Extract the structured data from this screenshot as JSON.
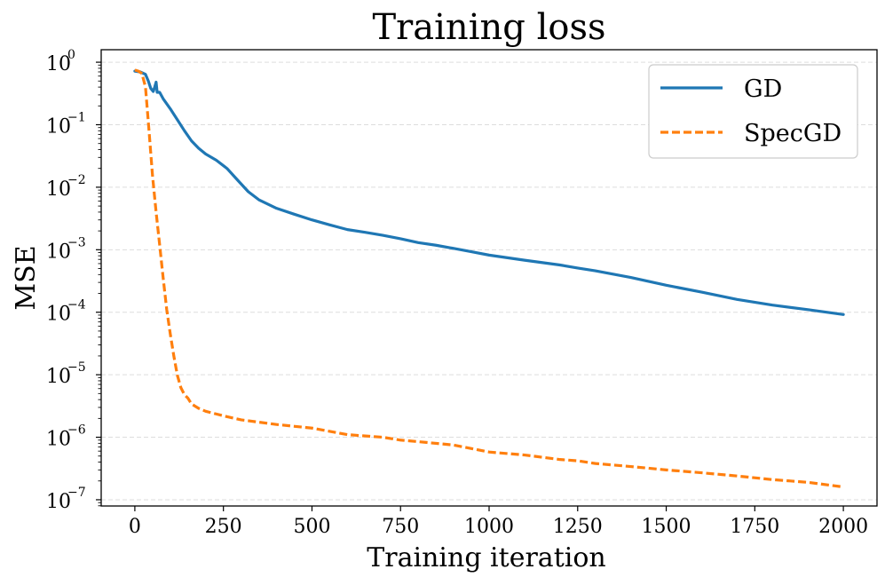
{
  "chart_data": {
    "type": "line",
    "title": "Training loss",
    "xlabel": "Training iteration",
    "ylabel": "MSE",
    "yscale": "log",
    "xlim": [
      -95,
      2095
    ],
    "ylim_exp": [
      -7.1,
      0.2
    ],
    "x_ticks": [
      0,
      250,
      500,
      750,
      1000,
      1250,
      1500,
      1750,
      2000
    ],
    "x_tick_labels": [
      "0",
      "250",
      "500",
      "750",
      "1000",
      "1250",
      "1500",
      "1750",
      "2000"
    ],
    "y_ticks_exp": [
      0,
      -1,
      -2,
      -3,
      -4,
      -5,
      -6,
      -7
    ],
    "y_tick_base": "10",
    "y_tick_exponents": [
      "0",
      "−1",
      "−2",
      "−3",
      "−4",
      "−5",
      "−6",
      "−7"
    ],
    "grid": "y-dashed",
    "legend_position": "top-right",
    "series": [
      {
        "name": "GD",
        "color": "#1f77b4",
        "style": "solid",
        "points": [
          [
            0,
            0.72
          ],
          [
            15,
            0.7
          ],
          [
            30,
            0.64
          ],
          [
            38,
            0.5
          ],
          [
            45,
            0.38
          ],
          [
            52,
            0.34
          ],
          [
            56,
            0.4
          ],
          [
            60,
            0.48
          ],
          [
            63,
            0.33
          ],
          [
            70,
            0.33
          ],
          [
            80,
            0.26
          ],
          [
            100,
            0.18
          ],
          [
            120,
            0.12
          ],
          [
            140,
            0.08
          ],
          [
            160,
            0.055
          ],
          [
            180,
            0.042
          ],
          [
            200,
            0.034
          ],
          [
            230,
            0.027
          ],
          [
            260,
            0.02
          ],
          [
            290,
            0.013
          ],
          [
            320,
            0.0085
          ],
          [
            350,
            0.0063
          ],
          [
            400,
            0.0046
          ],
          [
            450,
            0.0037
          ],
          [
            500,
            0.003
          ],
          [
            550,
            0.0025
          ],
          [
            600,
            0.0021
          ],
          [
            650,
            0.0019
          ],
          [
            700,
            0.0017
          ],
          [
            750,
            0.0015
          ],
          [
            800,
            0.0013
          ],
          [
            850,
            0.00118
          ],
          [
            900,
            0.00105
          ],
          [
            950,
            0.00093
          ],
          [
            1000,
            0.00082
          ],
          [
            1100,
            0.00068
          ],
          [
            1200,
            0.00057
          ],
          [
            1250,
            0.00051
          ],
          [
            1300,
            0.00046
          ],
          [
            1400,
            0.00036
          ],
          [
            1500,
            0.00027
          ],
          [
            1600,
            0.00021
          ],
          [
            1700,
            0.00016
          ],
          [
            1800,
            0.00013
          ],
          [
            1900,
            0.00011
          ],
          [
            2000,
            9.2e-05
          ]
        ]
      },
      {
        "name": "SpecGD",
        "color": "#ff7f0e",
        "style": "dashed",
        "points": [
          [
            0,
            0.75
          ],
          [
            10,
            0.72
          ],
          [
            20,
            0.66
          ],
          [
            30,
            0.4
          ],
          [
            40,
            0.08
          ],
          [
            50,
            0.015
          ],
          [
            60,
            0.004
          ],
          [
            70,
            0.0012
          ],
          [
            80,
            0.00035
          ],
          [
            90,
            0.00011
          ],
          [
            100,
            4.5e-05
          ],
          [
            110,
            2e-05
          ],
          [
            120,
            9.8e-06
          ],
          [
            130,
            6.2e-06
          ],
          [
            140,
            4.8e-06
          ],
          [
            150,
            4.2e-06
          ],
          [
            160,
            3.4e-06
          ],
          [
            180,
            2.9e-06
          ],
          [
            200,
            2.6e-06
          ],
          [
            250,
            2.2e-06
          ],
          [
            300,
            1.9e-06
          ],
          [
            400,
            1.6e-06
          ],
          [
            500,
            1.4e-06
          ],
          [
            600,
            1.1e-06
          ],
          [
            700,
            1e-06
          ],
          [
            750,
            9e-07
          ],
          [
            800,
            8.5e-07
          ],
          [
            900,
            7.5e-07
          ],
          [
            1000,
            5.8e-07
          ],
          [
            1100,
            5.2e-07
          ],
          [
            1200,
            4.4e-07
          ],
          [
            1250,
            4.2e-07
          ],
          [
            1300,
            3.8e-07
          ],
          [
            1400,
            3.4e-07
          ],
          [
            1500,
            3e-07
          ],
          [
            1600,
            2.7e-07
          ],
          [
            1700,
            2.4e-07
          ],
          [
            1800,
            2.1e-07
          ],
          [
            1900,
            1.9e-07
          ],
          [
            2000,
            1.6e-07
          ]
        ]
      }
    ]
  }
}
